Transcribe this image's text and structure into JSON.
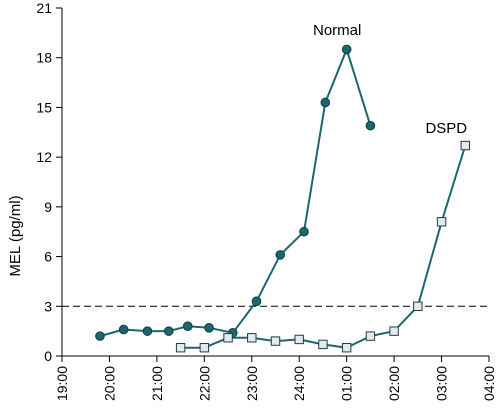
{
  "chart_data": {
    "type": "line",
    "ylabel": "MEL (pg/ml)",
    "xlabel": "",
    "title": "",
    "x_ticks": [
      "19:00",
      "20:00",
      "21:00",
      "22:00",
      "23:00",
      "24:00",
      "01:00",
      "02:00",
      "03:00",
      "04:00"
    ],
    "xlim": [
      19,
      28
    ],
    "y_ticks": [
      0,
      3,
      6,
      9,
      12,
      15,
      18,
      21
    ],
    "ylim": [
      0,
      21
    ],
    "grid": false,
    "threshold": {
      "value": 3,
      "style": "dashed"
    },
    "series": [
      {
        "name": "Normal",
        "marker": "circle",
        "color": "#1d6670",
        "marker_fill": "#1d6670",
        "x": [
          19.8,
          20.3,
          20.8,
          21.25,
          21.65,
          22.1,
          22.6,
          23.1,
          23.6,
          24.1,
          24.55,
          25.0,
          25.5
        ],
        "y": [
          1.2,
          1.6,
          1.5,
          1.5,
          1.8,
          1.7,
          1.4,
          3.3,
          6.1,
          7.5,
          15.3,
          18.5,
          13.9
        ]
      },
      {
        "name": "DSPD",
        "marker": "square",
        "color": "#1d6670",
        "marker_fill": "#e4e9ea",
        "x": [
          21.5,
          22.0,
          22.5,
          23.0,
          23.5,
          24.0,
          24.5,
          25.0,
          25.5,
          26.0,
          26.5,
          27.0,
          27.5
        ],
        "y": [
          0.5,
          0.5,
          1.1,
          1.1,
          0.9,
          1.0,
          0.7,
          0.5,
          1.2,
          1.5,
          3.0,
          8.1,
          12.7
        ]
      }
    ]
  }
}
